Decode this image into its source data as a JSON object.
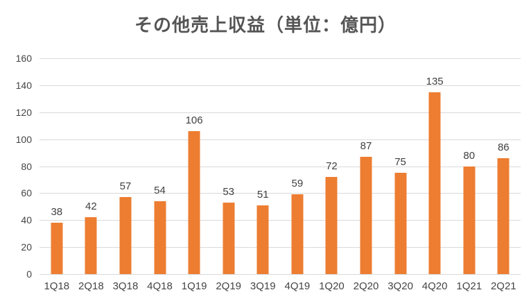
{
  "chart_data": {
    "type": "bar",
    "title": "その他売上収益（単位：億円）",
    "categories": [
      "1Q18",
      "2Q18",
      "3Q18",
      "4Q18",
      "1Q19",
      "2Q19",
      "3Q19",
      "4Q19",
      "1Q20",
      "2Q20",
      "3Q20",
      "4Q20",
      "1Q21",
      "2Q21"
    ],
    "values": [
      38,
      42,
      57,
      54,
      106,
      53,
      51,
      59,
      72,
      87,
      75,
      135,
      80,
      86
    ],
    "xlabel": "",
    "ylabel": "",
    "ylim": [
      0,
      160
    ],
    "yticks": [
      0,
      20,
      40,
      60,
      80,
      100,
      120,
      140,
      160
    ],
    "grid": true,
    "legend": false,
    "data_labels": true,
    "colors": {
      "bar": "#ED7D31",
      "gridline": "#D9D9D9",
      "title_text": "#555555",
      "axis_text": "#444444",
      "data_label_text": "#3F3F3F",
      "background": "#FFFFFF"
    }
  }
}
